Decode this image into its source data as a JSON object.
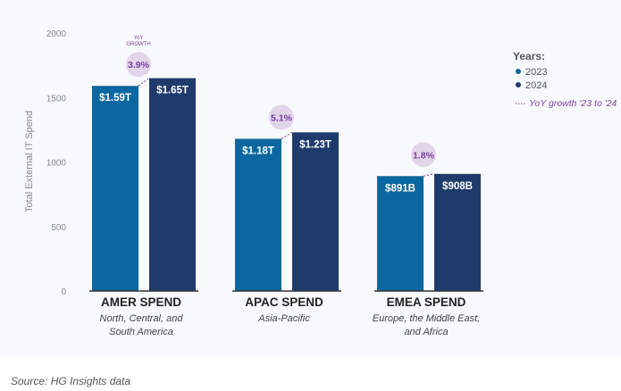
{
  "source": "Source: HG Insights data",
  "chart_data": {
    "type": "bar",
    "ylabel": "Total External IT Spend",
    "ylim": [
      0,
      2000
    ],
    "yticks": [
      0,
      500,
      1000,
      1500,
      2000
    ],
    "grid": false,
    "legend_title": "Years:",
    "legend_position": "top-right",
    "growth_legend": "YoY growth '23 to '24",
    "growth_header": "YoY GROWTH",
    "categories": [
      {
        "title": "AMER SPEND",
        "subtitle": [
          "North, Central, and",
          "South America"
        ]
      },
      {
        "title": "APAC SPEND",
        "subtitle": [
          "Asia-Pacific"
        ]
      },
      {
        "title": "EMEA SPEND",
        "subtitle": [
          "Europe, the Middle East,",
          "and Africa"
        ]
      }
    ],
    "series": [
      {
        "name": "2023",
        "color": "#0a679f",
        "values": [
          1590,
          1180,
          891
        ],
        "labels": [
          "$1.59T",
          "$1.18T",
          "$891B"
        ]
      },
      {
        "name": "2024",
        "color": "#1f3b6b",
        "values": [
          1650,
          1230,
          908
        ],
        "labels": [
          "$1.65T",
          "$1.23T",
          "$908B"
        ]
      }
    ],
    "growth": [
      "3.9%",
      "5.1%",
      "1.8%"
    ],
    "growth_color": "#7b3fa0"
  }
}
